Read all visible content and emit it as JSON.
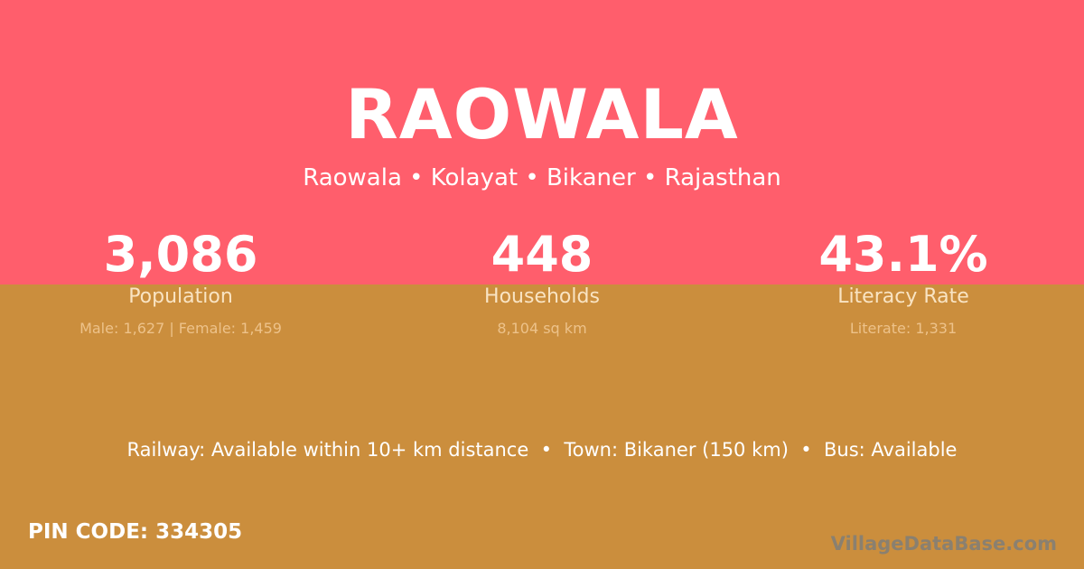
{
  "header": {
    "title": "RAOWALA",
    "breadcrumb": "Raowala • Kolayat • Bikaner • Rajasthan"
  },
  "stats": [
    {
      "value": "3,086",
      "label": "Population",
      "detail": "Male: 1,627 | Female: 1,459"
    },
    {
      "value": "448",
      "label": "Households",
      "detail": "8,104 sq km"
    },
    {
      "value": "43.1%",
      "label": "Literacy Rate",
      "detail": "Literate: 1,331"
    }
  ],
  "info": "Railway: Available within 10+ km distance  •  Town: Bikaner (150 km)  •  Bus: Available",
  "pin": "PIN CODE: 334305",
  "logo": "VillageDataBase.com",
  "colors": {
    "top": "#FF5E6C",
    "bottom": "#CB8E3D"
  }
}
